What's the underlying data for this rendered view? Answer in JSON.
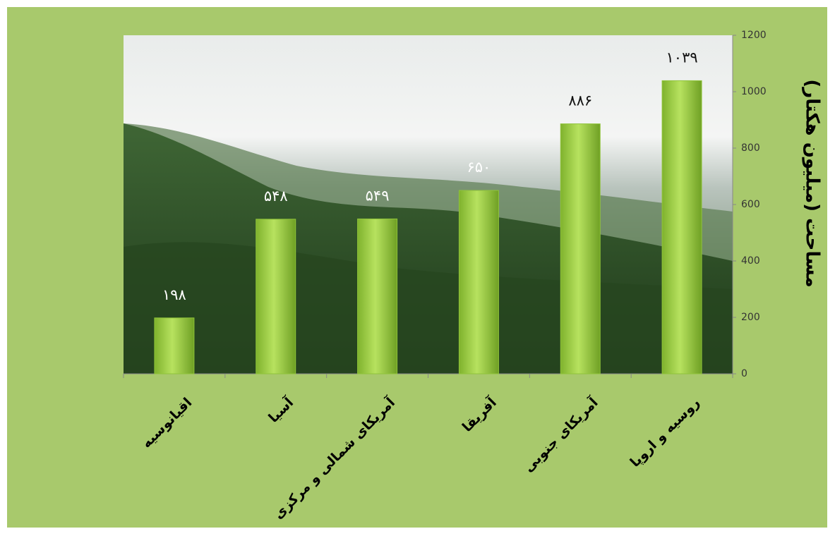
{
  "chart_data": {
    "type": "bar",
    "y_label": "مساحت (میلیون هکتار)",
    "categories": [
      "اقیانوسیه",
      "آسیا",
      "آمریکای شمالی و مرکزی",
      "آفریقا",
      "آمریکای جنوبی",
      "روسیه و اروپا"
    ],
    "values": [
      198,
      548,
      549,
      650,
      886,
      1039
    ],
    "value_labels": [
      "۱۹۸",
      "۵۴۸",
      "۵۴۹",
      "۶۵۰",
      "۸۸۶",
      "۱۰۳۹"
    ],
    "color": "#8fc43a",
    "ylim": [
      0,
      1200
    ],
    "yticks": [
      0,
      200,
      400,
      600,
      800,
      1000,
      1200
    ]
  }
}
